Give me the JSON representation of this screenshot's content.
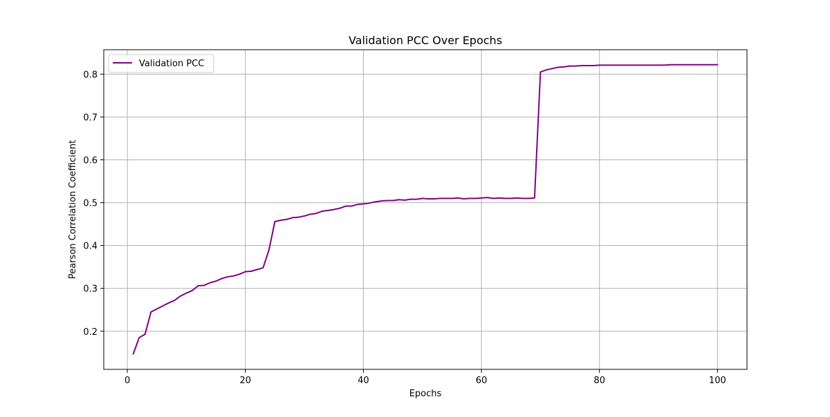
{
  "chart_data": {
    "type": "line",
    "title": "Validation PCC Over Epochs",
    "xlabel": "Epochs",
    "ylabel": "Pearson Correlation Coefficient",
    "xlim": [
      -4,
      105
    ],
    "ylim": [
      0.111,
      0.857
    ],
    "xticks": [
      0,
      20,
      40,
      60,
      80,
      100
    ],
    "yticks": [
      0.2,
      0.3,
      0.4,
      0.5,
      0.6,
      0.7,
      0.8
    ],
    "xtick_labels": [
      "0",
      "20",
      "40",
      "60",
      "80",
      "100"
    ],
    "ytick_labels": [
      "0.2",
      "0.3",
      "0.4",
      "0.5",
      "0.6",
      "0.7",
      "0.8"
    ],
    "grid": true,
    "legend_position": "top-left",
    "series": [
      {
        "name": "Validation PCC",
        "color": "#800080",
        "x": [
          1,
          2,
          3,
          4,
          5,
          6,
          7,
          8,
          9,
          10,
          11,
          12,
          13,
          14,
          15,
          16,
          17,
          18,
          19,
          20,
          21,
          22,
          23,
          24,
          25,
          26,
          27,
          28,
          29,
          30,
          31,
          32,
          33,
          34,
          35,
          36,
          37,
          38,
          39,
          40,
          41,
          42,
          43,
          44,
          45,
          46,
          47,
          48,
          49,
          50,
          51,
          52,
          53,
          54,
          55,
          56,
          57,
          58,
          59,
          60,
          61,
          62,
          63,
          64,
          65,
          66,
          67,
          68,
          69,
          70,
          71,
          72,
          73,
          74,
          75,
          76,
          77,
          78,
          79,
          80,
          81,
          82,
          83,
          84,
          85,
          86,
          87,
          88,
          89,
          90,
          91,
          92,
          93,
          94,
          95,
          96,
          97,
          98,
          99,
          100
        ],
        "y": [
          0.147,
          0.185,
          0.193,
          0.245,
          0.252,
          0.259,
          0.266,
          0.272,
          0.282,
          0.289,
          0.295,
          0.306,
          0.307,
          0.313,
          0.317,
          0.323,
          0.327,
          0.329,
          0.333,
          0.339,
          0.34,
          0.344,
          0.348,
          0.39,
          0.456,
          0.459,
          0.461,
          0.465,
          0.466,
          0.469,
          0.473,
          0.475,
          0.48,
          0.482,
          0.484,
          0.487,
          0.492,
          0.492,
          0.496,
          0.497,
          0.499,
          0.502,
          0.504,
          0.505,
          0.505,
          0.507,
          0.506,
          0.508,
          0.508,
          0.51,
          0.509,
          0.509,
          0.51,
          0.51,
          0.51,
          0.511,
          0.509,
          0.51,
          0.51,
          0.511,
          0.512,
          0.51,
          0.511,
          0.51,
          0.51,
          0.511,
          0.51,
          0.51,
          0.511,
          0.805,
          0.81,
          0.813,
          0.816,
          0.817,
          0.819,
          0.819,
          0.82,
          0.82,
          0.82,
          0.821,
          0.821,
          0.821,
          0.821,
          0.821,
          0.821,
          0.821,
          0.821,
          0.821,
          0.821,
          0.821,
          0.821,
          0.822,
          0.822,
          0.822,
          0.822,
          0.822,
          0.822,
          0.822,
          0.822,
          0.822
        ]
      }
    ]
  }
}
